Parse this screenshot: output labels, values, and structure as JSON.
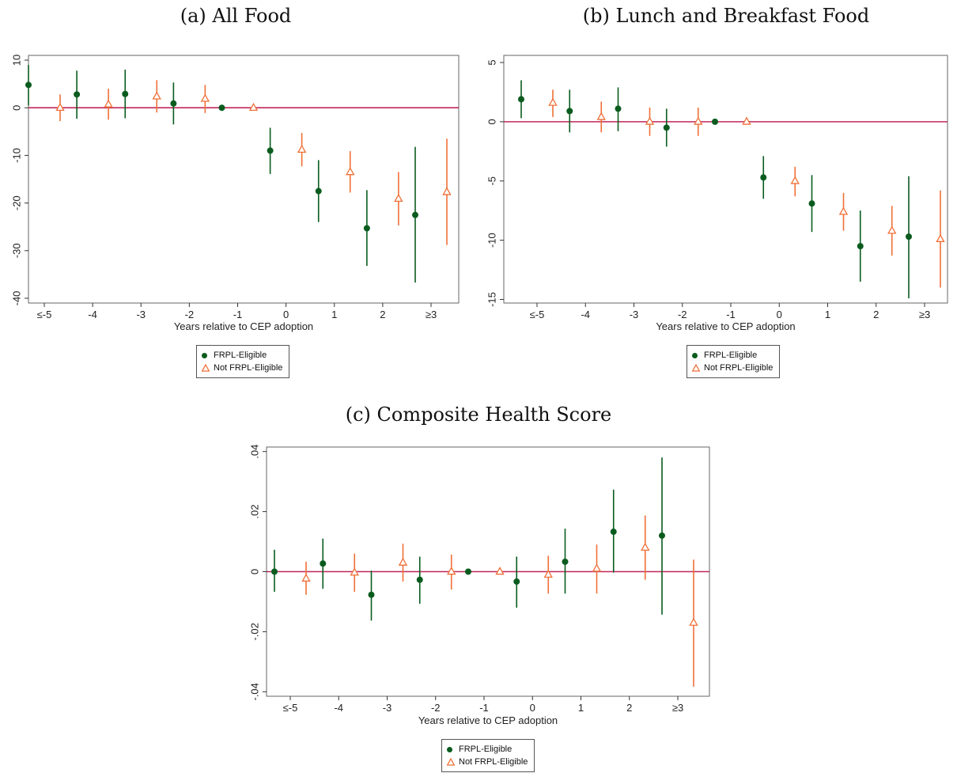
{
  "colors": {
    "frpl": "#0a5c1e",
    "not_frpl": "#f07038",
    "zero_line": "#c0275a",
    "axis": "#333333",
    "frame": "#666666"
  },
  "chart_data": [
    {
      "type": "scatter",
      "title": "(a) All Food",
      "xlabel": "Years relative to CEP adoption",
      "ylabel": "",
      "categories": [
        "≤-5",
        "-4",
        "-3",
        "-2",
        "-1",
        "0",
        "1",
        "2",
        "≥3"
      ],
      "ylim": [
        -41,
        11
      ],
      "yticks": [
        10,
        0,
        -10,
        -20,
        -30,
        -40
      ],
      "ytick_labels": [
        "10",
        "0",
        "-10",
        "-20",
        "-30",
        "-40"
      ],
      "legend": [
        "FRPL-Eligible",
        "Not FRPL-Eligible"
      ],
      "series": [
        {
          "name": "FRPL-Eligible",
          "marker": "circle",
          "values": [
            4.8,
            2.8,
            2.9,
            0.9,
            0.0,
            -9.0,
            -17.5,
            -25.3,
            -22.5
          ],
          "lower": [
            0.5,
            -2.3,
            -2.2,
            -3.5,
            0.0,
            -13.9,
            -24.0,
            -33.2,
            -36.7
          ],
          "upper": [
            9.0,
            7.8,
            8.0,
            5.3,
            0.0,
            -4.2,
            -11.0,
            -17.3,
            -8.2
          ]
        },
        {
          "name": "Not FRPL-Eligible",
          "marker": "triangle",
          "values": [
            0.0,
            0.7,
            2.4,
            1.9,
            0.0,
            -8.8,
            -13.5,
            -19.1,
            -17.7
          ],
          "lower": [
            -2.8,
            -2.5,
            -1.0,
            -1.1,
            0.0,
            -12.3,
            -17.8,
            -24.7,
            -28.8
          ],
          "upper": [
            2.8,
            4.0,
            5.8,
            4.8,
            0.0,
            -5.3,
            -9.1,
            -13.5,
            -6.5
          ]
        }
      ]
    },
    {
      "type": "scatter",
      "title": "(b) Lunch and Breakfast Food",
      "xlabel": "Years relative to CEP adoption",
      "ylabel": "",
      "categories": [
        "≤-5",
        "-4",
        "-3",
        "-2",
        "-1",
        "0",
        "1",
        "2",
        "≥3"
      ],
      "ylim": [
        -15.3,
        5.6
      ],
      "yticks": [
        5,
        0,
        -5,
        -10,
        -15
      ],
      "ytick_labels": [
        "5",
        "0",
        "-5",
        "-10",
        "-15"
      ],
      "legend": [
        "FRPL-Eligible",
        "Not FRPL-Eligible"
      ],
      "series": [
        {
          "name": "FRPL-Eligible",
          "marker": "circle",
          "values": [
            1.9,
            0.9,
            1.1,
            -0.5,
            0.0,
            -4.7,
            -6.9,
            -10.5,
            -9.7
          ],
          "lower": [
            0.3,
            -0.9,
            -0.8,
            -2.1,
            0.0,
            -6.5,
            -9.3,
            -13.5,
            -14.9
          ],
          "upper": [
            3.5,
            2.7,
            2.9,
            1.1,
            0.0,
            -2.9,
            -4.5,
            -7.5,
            -4.6
          ]
        },
        {
          "name": "Not FRPL-Eligible",
          "marker": "triangle",
          "values": [
            1.6,
            0.4,
            0.0,
            0.0,
            0.0,
            -5.0,
            -7.6,
            -9.2,
            -9.9
          ],
          "lower": [
            0.4,
            -0.9,
            -1.2,
            -1.2,
            0.0,
            -6.3,
            -9.2,
            -11.3,
            -14.0
          ],
          "upper": [
            2.7,
            1.7,
            1.2,
            1.2,
            0.0,
            -3.8,
            -6.0,
            -7.1,
            -5.8
          ]
        }
      ]
    },
    {
      "type": "scatter",
      "title": "(c) Composite Health Score",
      "xlabel": "Years relative to CEP adoption",
      "ylabel": "",
      "categories": [
        "≤-5",
        "-4",
        "-3",
        "-2",
        "-1",
        "0",
        "1",
        "2",
        "≥3"
      ],
      "ylim": [
        -0.0415,
        0.0415
      ],
      "yticks": [
        0.04,
        0.02,
        0,
        -0.02,
        -0.04
      ],
      "ytick_labels": [
        ".04",
        ".02",
        "0",
        "-.02",
        "-.04"
      ],
      "legend": [
        "FRPL-Eligible",
        "Not FRPL-Eligible"
      ],
      "series": [
        {
          "name": "FRPL-Eligible",
          "marker": "circle",
          "values": [
            0.0,
            0.0027,
            -0.0077,
            -0.0027,
            0.0,
            -0.0033,
            0.0033,
            0.0133,
            0.012
          ],
          "lower": [
            -0.0067,
            -0.0057,
            -0.0163,
            -0.0107,
            0.0,
            -0.012,
            -0.0073,
            -0.0003,
            -0.0143
          ],
          "upper": [
            0.0073,
            0.011,
            0.0003,
            0.005,
            0.0,
            0.005,
            0.0143,
            0.0273,
            0.038
          ]
        },
        {
          "name": "Not FRPL-Eligible",
          "marker": "triangle",
          "values": [
            -0.0023,
            -0.0003,
            0.003,
            0.0,
            0.0,
            -0.001,
            0.001,
            0.008,
            -0.017
          ],
          "lower": [
            -0.0077,
            -0.0067,
            -0.0033,
            -0.006,
            0.0,
            -0.0073,
            -0.0073,
            -0.0027,
            -0.0383
          ],
          "upper": [
            0.0033,
            0.006,
            0.0093,
            0.0057,
            0.0,
            0.0053,
            0.009,
            0.0187,
            0.004
          ]
        }
      ]
    }
  ]
}
